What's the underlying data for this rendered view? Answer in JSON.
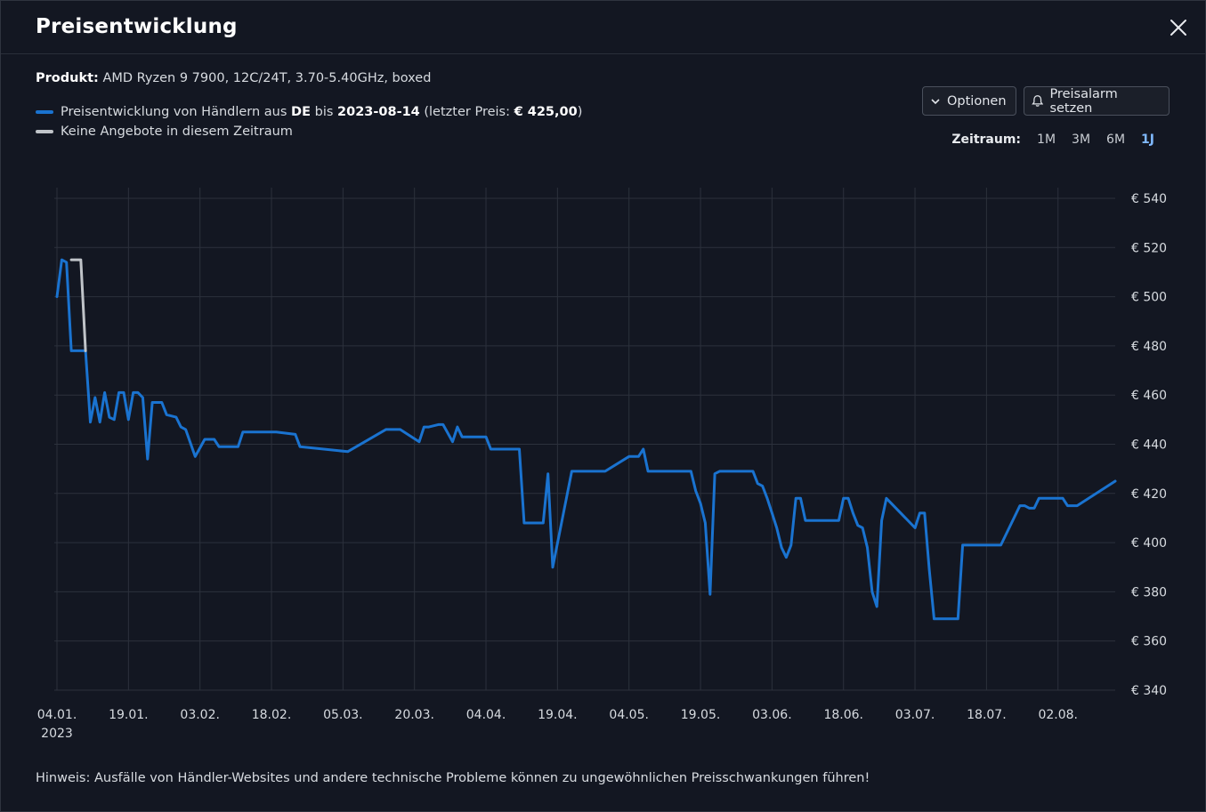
{
  "header": {
    "title": "Preisentwicklung"
  },
  "product": {
    "label": "Produkt:",
    "name": "AMD Ryzen 9 7900, 12C/24T, 3.70-5.40GHz, boxed"
  },
  "legend": {
    "prices": {
      "color": "#1a73d0",
      "prefix": "Preisentwicklung von Händlern aus ",
      "country": "DE",
      "middle": " bis ",
      "date": "2023-08-14",
      "price_prefix": " (letzter Preis: ",
      "last_price": "€ 425,00",
      "suffix": ")"
    },
    "no_offers": {
      "color": "#c0c4c9",
      "label": "Keine Angebote in diesem Zeitraum"
    }
  },
  "toolbar": {
    "options_label": "Optionen",
    "alarm_label": "Preisalarm setzen"
  },
  "zeitraum": {
    "label": "Zeitraum:",
    "options": [
      "1M",
      "3M",
      "6M",
      "1J"
    ],
    "active": "1J"
  },
  "hint": "Hinweis: Ausfälle von Händler-Websites und andere technische Probleme können zu ungewöhnlichen Preisschwankungen führen!",
  "colors": {
    "background": "#131722",
    "grid": "#2c313c",
    "line": "#1a73d0",
    "gap": "#c0c4c9"
  },
  "chart_data": {
    "type": "line",
    "currency": "€",
    "ylim": [
      340,
      540
    ],
    "yticks": [
      340,
      360,
      380,
      400,
      420,
      440,
      460,
      480,
      500,
      520,
      540
    ],
    "ytick_labels": [
      "€ 340",
      "€ 360",
      "€ 380",
      "€ 400",
      "€ 420",
      "€ 440",
      "€ 460",
      "€ 480",
      "€ 500",
      "€ 520",
      "€ 540"
    ],
    "xlim": [
      "2023-01-04",
      "2023-08-14"
    ],
    "xticks": [
      "2023-01-04",
      "2023-01-19",
      "2023-02-03",
      "2023-02-18",
      "2023-03-05",
      "2023-03-20",
      "2023-04-04",
      "2023-04-19",
      "2023-05-04",
      "2023-05-19",
      "2023-06-03",
      "2023-06-18",
      "2023-07-03",
      "2023-07-18",
      "2023-08-02"
    ],
    "xtick_labels": [
      "04.01.",
      "19.01.",
      "03.02.",
      "18.02.",
      "05.03.",
      "20.03.",
      "04.04.",
      "19.04.",
      "04.05.",
      "19.05.",
      "03.06.",
      "18.06.",
      "03.07.",
      "18.07.",
      "02.08."
    ],
    "year_label": "2023",
    "grid": true,
    "legend_position": "top-left",
    "series": [
      {
        "name": "Preisentwicklung von Händlern aus DE",
        "x": [
          "2023-01-04",
          "2023-01-05",
          "2023-01-06",
          "2023-01-07",
          "2023-01-10",
          "2023-01-11",
          "2023-01-12",
          "2023-01-13",
          "2023-01-14",
          "2023-01-15",
          "2023-01-16",
          "2023-01-17",
          "2023-01-18",
          "2023-01-19",
          "2023-01-20",
          "2023-01-21",
          "2023-01-22",
          "2023-01-23",
          "2023-01-24",
          "2023-01-25",
          "2023-01-26",
          "2023-01-27",
          "2023-01-29",
          "2023-01-30",
          "2023-01-31",
          "2023-02-02",
          "2023-02-04",
          "2023-02-06",
          "2023-02-07",
          "2023-02-08",
          "2023-02-09",
          "2023-02-10",
          "2023-02-11",
          "2023-02-12",
          "2023-02-14",
          "2023-02-18",
          "2023-02-19",
          "2023-02-23",
          "2023-02-24",
          "2023-03-06",
          "2023-03-14",
          "2023-03-15",
          "2023-03-16",
          "2023-03-17",
          "2023-03-21",
          "2023-03-22",
          "2023-03-23",
          "2023-03-25",
          "2023-03-26",
          "2023-03-28",
          "2023-03-29",
          "2023-03-30",
          "2023-03-31",
          "2023-04-01",
          "2023-04-04",
          "2023-04-05",
          "2023-04-06",
          "2023-04-11",
          "2023-04-12",
          "2023-04-15",
          "2023-04-16",
          "2023-04-17",
          "2023-04-18",
          "2023-04-22",
          "2023-04-23",
          "2023-04-24",
          "2023-04-25",
          "2023-04-28",
          "2023-04-29",
          "2023-05-04",
          "2023-05-05",
          "2023-05-06",
          "2023-05-07",
          "2023-05-08",
          "2023-05-12",
          "2023-05-13",
          "2023-05-14",
          "2023-05-15",
          "2023-05-16",
          "2023-05-17",
          "2023-05-18",
          "2023-05-19",
          "2023-05-20",
          "2023-05-21",
          "2023-05-22",
          "2023-05-23",
          "2023-05-24",
          "2023-05-25",
          "2023-05-26",
          "2023-05-30",
          "2023-05-31",
          "2023-06-01",
          "2023-06-02",
          "2023-06-03",
          "2023-06-04",
          "2023-06-05",
          "2023-06-06",
          "2023-06-07",
          "2023-06-08",
          "2023-06-09",
          "2023-06-10",
          "2023-06-11",
          "2023-06-12",
          "2023-06-13",
          "2023-06-14",
          "2023-06-15",
          "2023-06-17",
          "2023-06-18",
          "2023-06-19",
          "2023-06-20",
          "2023-06-21",
          "2023-06-22",
          "2023-06-23",
          "2023-06-24",
          "2023-06-25",
          "2023-06-26",
          "2023-06-27",
          "2023-07-03",
          "2023-07-04",
          "2023-07-05",
          "2023-07-06",
          "2023-07-07",
          "2023-07-08",
          "2023-07-09",
          "2023-07-10",
          "2023-07-11",
          "2023-07-12",
          "2023-07-13",
          "2023-07-14",
          "2023-07-15",
          "2023-07-17",
          "2023-07-18",
          "2023-07-19",
          "2023-07-20",
          "2023-07-21",
          "2023-07-25",
          "2023-07-26",
          "2023-07-27",
          "2023-07-28",
          "2023-07-29",
          "2023-08-03",
          "2023-08-04",
          "2023-08-05",
          "2023-08-06",
          "2023-08-14"
        ],
        "y": [
          500,
          515,
          514,
          478,
          478,
          449,
          459,
          449,
          461,
          451,
          450,
          461,
          461,
          450,
          461,
          461,
          459,
          434,
          457,
          457,
          457,
          452,
          451,
          447,
          446,
          435,
          442,
          442,
          439,
          439,
          439,
          439,
          439,
          445,
          445,
          445,
          445,
          444,
          439,
          437,
          446,
          446,
          446,
          446,
          441,
          447,
          447,
          448,
          448,
          441,
          447,
          443,
          443,
          443,
          443,
          438,
          438,
          438,
          408,
          408,
          408,
          428,
          390,
          429,
          429,
          429,
          429,
          429,
          429,
          435,
          435,
          435,
          438,
          429,
          429,
          429,
          429,
          429,
          429,
          429,
          421,
          416,
          408,
          379,
          428,
          429,
          429,
          429,
          429,
          429,
          424,
          423,
          418,
          412,
          406,
          398,
          394,
          399,
          418,
          418,
          409,
          409,
          409,
          409,
          409,
          409,
          409,
          418,
          418,
          412,
          407,
          406,
          398,
          380,
          374,
          409,
          418,
          406,
          412,
          412,
          389,
          369,
          369,
          369,
          369,
          369,
          369,
          399,
          399,
          399,
          399,
          399,
          399,
          399,
          399,
          415,
          415,
          414,
          414,
          418,
          418,
          415,
          415,
          415,
          425
        ],
        "color": "#1a73d0"
      },
      {
        "name": "Keine Angebote in diesem Zeitraum",
        "x": [
          "2023-01-07",
          "2023-01-08",
          "2023-01-09",
          "2023-01-10"
        ],
        "y": [
          515,
          515,
          515,
          478
        ],
        "color": "#c0c4c9"
      }
    ]
  }
}
